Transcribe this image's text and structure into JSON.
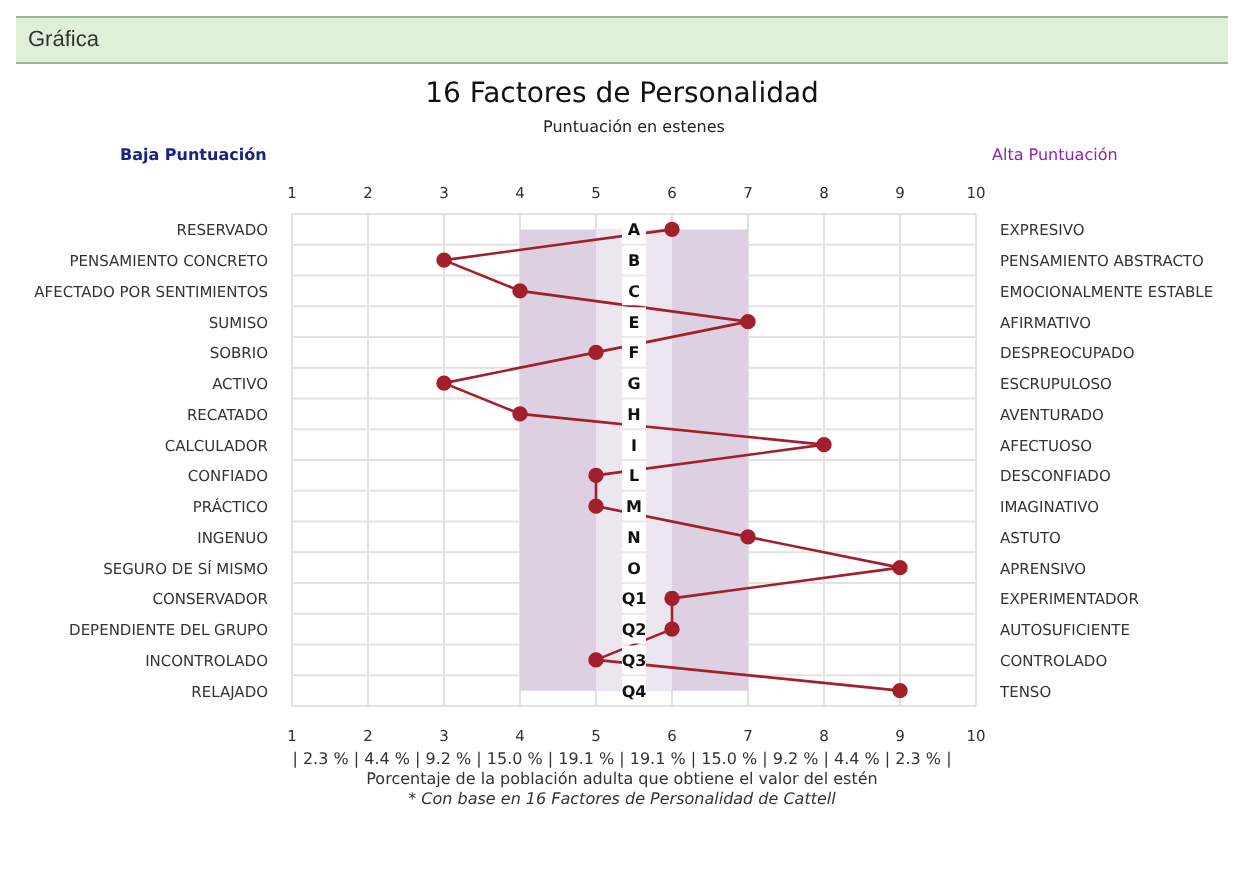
{
  "chart_data": {
    "type": "line",
    "title": "16 Factores de Personalidad",
    "x2label": "Puntuación en estenes",
    "ylabel": "Baja Puntuación",
    "y2label": "Alta Puntuación",
    "categories": [
      "RESERVADO",
      "PENSAMIENTO CONCRETO",
      "AFECTADO POR SENTIMIENTOS",
      "SUMISO",
      "SOBRIO",
      "ACTIVO",
      "RECATADO",
      "CALCULADOR",
      "CONFIADO",
      "PRÁCTICO",
      "INGENUO",
      "SEGURO DE SÍ MISMO",
      "CONSERVADOR",
      "DEPENDIENTE DEL GRUPO",
      "INCONTROLADO",
      "RELAJADO"
    ],
    "y2_categories": [
      "EXPRESIVO",
      "PENSAMIENTO ABSTRACTO",
      "EMOCIONALMENTE ESTABLE",
      "AFIRMATIVO",
      "DESPREOCUPADO",
      "ESCRUPULOSO",
      "AVENTURADO",
      "AFECTUOSO",
      "DESCONFIADO",
      "IMAGINATIVO",
      "ASTUTO",
      "APRENSIVO",
      "EXPERIMENTADOR",
      "AUTOSUFICIENTE",
      "CONTROLADO",
      "TENSO"
    ],
    "series": [
      {
        "color": "#a31f2c",
        "values": [
          6,
          3,
          4,
          7,
          5,
          3,
          4,
          8,
          5,
          5,
          7,
          9,
          6,
          6,
          5,
          9
        ]
      }
    ],
    "xlim": [
      1,
      10
    ],
    "xticks": [
      1,
      2,
      3,
      4,
      5,
      6,
      7,
      8,
      9,
      10
    ],
    "x2lim": [
      1,
      10
    ],
    "x2ticks": [
      1,
      2,
      3,
      4,
      5,
      6,
      7,
      8,
      9,
      10
    ],
    "bands": [
      {
        "axis": "x",
        "from": 4,
        "to": 7,
        "color": "#dcd0e2"
      },
      {
        "axis": "x",
        "from": 5,
        "to": 6,
        "color": "#ece6f0"
      }
    ],
    "orientation": "horizontal",
    "grid": true,
    "marker": "circle",
    "line_style": "solid",
    "annotations": [
      "Gráfica",
      "A",
      "B",
      "C",
      "E",
      "F",
      "G",
      "H",
      "I",
      "L",
      "M",
      "N",
      "O",
      "Q1",
      "Q2",
      "Q3",
      "Q4",
      "| 2.3 % | 4.4 % | 9.2 % | 15.0 % | 19.1 % | 19.1 % | 15.0 % | 9.2 % | 4.4 % | 2.3 % |",
      "Porcentaje de la población adulta que obtiene el valor del estén",
      "* Con base en 16 Factores de Personalidad de Cattell"
    ]
  }
}
